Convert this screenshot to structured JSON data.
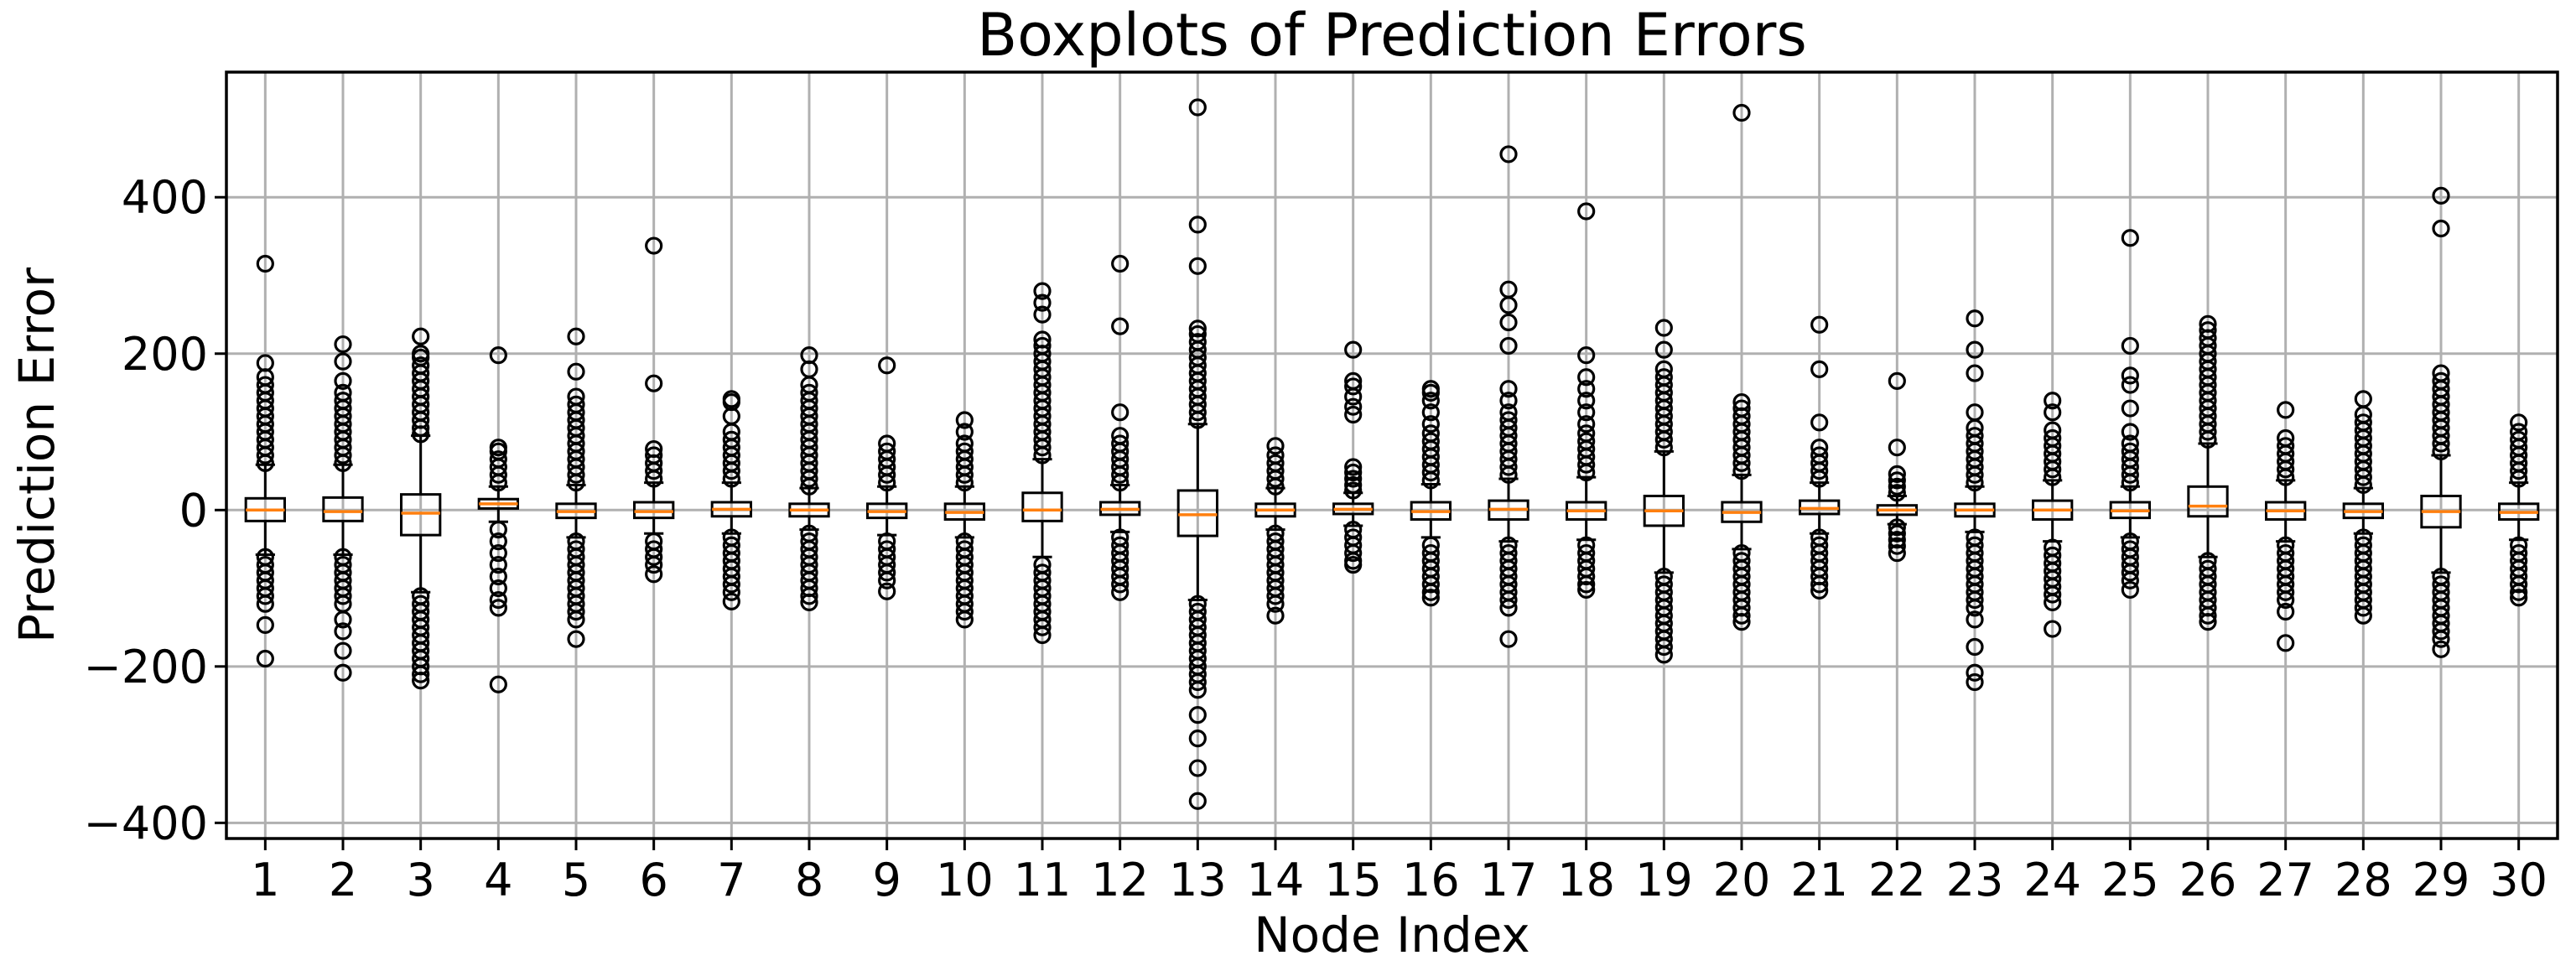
{
  "chart_data": {
    "type": "boxplot",
    "title": "Boxplots of Prediction Errors",
    "xlabel": "Node Index",
    "ylabel": "Prediction Error",
    "ylim": [
      -420,
      560
    ],
    "yticks": [
      -400,
      -200,
      0,
      200,
      400
    ],
    "ytick_labels": [
      "−400",
      "−200",
      "0",
      "200",
      "400"
    ],
    "grid": true,
    "colors": {
      "median": "#ff7f0e",
      "box": "#000000",
      "grid": "#b0b0b0"
    },
    "categories": [
      "1",
      "2",
      "3",
      "4",
      "5",
      "6",
      "7",
      "8",
      "9",
      "10",
      "11",
      "12",
      "13",
      "14",
      "15",
      "16",
      "17",
      "18",
      "19",
      "20",
      "21",
      "22",
      "23",
      "24",
      "25",
      "26",
      "27",
      "28",
      "29",
      "30"
    ],
    "boxes": [
      {
        "q1": -14,
        "median": 0,
        "q3": 15,
        "whisker_low": -57,
        "whisker_high": 58,
        "outliers_high": [
          60,
          70,
          80,
          90,
          100,
          110,
          120,
          130,
          140,
          150,
          160,
          170,
          188,
          315
        ],
        "outliers_low": [
          -60,
          -70,
          -80,
          -90,
          -100,
          -110,
          -120,
          -147,
          -190
        ]
      },
      {
        "q1": -14,
        "median": -2,
        "q3": 16,
        "whisker_low": -57,
        "whisker_high": 58,
        "outliers_high": [
          60,
          70,
          80,
          90,
          100,
          110,
          120,
          130,
          140,
          150,
          165,
          190,
          212
        ],
        "outliers_low": [
          -60,
          -70,
          -80,
          -90,
          -100,
          -110,
          -120,
          -140,
          -155,
          -180,
          -208
        ]
      },
      {
        "q1": -32,
        "median": -4,
        "q3": 20,
        "whisker_low": -105,
        "whisker_high": 95,
        "outliers_high": [
          97,
          105,
          115,
          125,
          135,
          145,
          155,
          165,
          175,
          185,
          195,
          200,
          222
        ],
        "outliers_low": [
          -110,
          -120,
          -130,
          -140,
          -150,
          -160,
          -170,
          -180,
          -190,
          -200,
          -210,
          -218
        ]
      },
      {
        "q1": 2,
        "median": 8,
        "q3": 14,
        "whisker_low": -15,
        "whisker_high": 30,
        "outliers_high": [
          35,
          45,
          55,
          65,
          75,
          80,
          198
        ],
        "outliers_low": [
          -25,
          -40,
          -55,
          -70,
          -85,
          -100,
          -115,
          -125,
          -223
        ]
      },
      {
        "q1": -10,
        "median": -2,
        "q3": 8,
        "whisker_low": -35,
        "whisker_high": 32,
        "outliers_high": [
          35,
          45,
          55,
          65,
          75,
          85,
          95,
          105,
          115,
          125,
          135,
          145,
          177,
          222
        ],
        "outliers_low": [
          -40,
          -50,
          -60,
          -70,
          -80,
          -90,
          -100,
          -110,
          -120,
          -130,
          -140,
          -165
        ]
      },
      {
        "q1": -10,
        "median": -2,
        "q3": 10,
        "whisker_low": -30,
        "whisker_high": 35,
        "outliers_high": [
          40,
          50,
          60,
          70,
          78,
          162,
          338
        ],
        "outliers_low": [
          -40,
          -50,
          -60,
          -70,
          -82
        ]
      },
      {
        "q1": -8,
        "median": 1,
        "q3": 10,
        "whisker_low": -30,
        "whisker_high": 35,
        "outliers_high": [
          40,
          50,
          60,
          70,
          80,
          90,
          100,
          120,
          138,
          142
        ],
        "outliers_low": [
          -35,
          -45,
          -55,
          -65,
          -75,
          -85,
          -95,
          -105,
          -117
        ]
      },
      {
        "q1": -8,
        "median": 0,
        "q3": 8,
        "whisker_low": -25,
        "whisker_high": 28,
        "outliers_high": [
          30,
          40,
          50,
          60,
          70,
          80,
          90,
          100,
          110,
          120,
          130,
          140,
          150,
          160,
          180,
          198
        ],
        "outliers_low": [
          -30,
          -40,
          -50,
          -60,
          -70,
          -80,
          -90,
          -100,
          -110,
          -118
        ]
      },
      {
        "q1": -10,
        "median": -2,
        "q3": 8,
        "whisker_low": -32,
        "whisker_high": 30,
        "outliers_high": [
          35,
          45,
          55,
          65,
          75,
          85,
          185
        ],
        "outliers_low": [
          -40,
          -50,
          -60,
          -70,
          -80,
          -90,
          -104
        ]
      },
      {
        "q1": -12,
        "median": -3,
        "q3": 8,
        "whisker_low": -35,
        "whisker_high": 30,
        "outliers_high": [
          35,
          45,
          55,
          65,
          75,
          85,
          100,
          115
        ],
        "outliers_low": [
          -40,
          -50,
          -60,
          -70,
          -80,
          -90,
          -100,
          -110,
          -120,
          -130,
          -140
        ]
      },
      {
        "q1": -14,
        "median": 0,
        "q3": 22,
        "whisker_low": -60,
        "whisker_high": 65,
        "outliers_high": [
          70,
          80,
          90,
          100,
          110,
          120,
          130,
          140,
          150,
          160,
          170,
          180,
          190,
          200,
          210,
          218,
          250,
          265,
          280
        ],
        "outliers_low": [
          -70,
          -80,
          -90,
          -100,
          -110,
          -120,
          -130,
          -140,
          -150,
          -160
        ]
      },
      {
        "q1": -6,
        "median": 1,
        "q3": 10,
        "whisker_low": -28,
        "whisker_high": 32,
        "outliers_high": [
          35,
          45,
          55,
          65,
          75,
          85,
          95,
          125,
          235,
          315
        ],
        "outliers_low": [
          -35,
          -45,
          -55,
          -65,
          -75,
          -85,
          -95,
          -105
        ]
      },
      {
        "q1": -33,
        "median": -6,
        "q3": 25,
        "whisker_low": -115,
        "whisker_high": 110,
        "outliers_high": [
          115,
          125,
          135,
          145,
          155,
          165,
          175,
          185,
          195,
          205,
          215,
          225,
          232,
          312,
          365,
          515
        ],
        "outliers_low": [
          -120,
          -130,
          -140,
          -150,
          -160,
          -170,
          -180,
          -190,
          -200,
          -210,
          -220,
          -230,
          -262,
          -292,
          -330,
          -372
        ]
      },
      {
        "q1": -8,
        "median": 0,
        "q3": 8,
        "whisker_low": -25,
        "whisker_high": 28,
        "outliers_high": [
          30,
          40,
          50,
          60,
          70,
          82
        ],
        "outliers_low": [
          -30,
          -40,
          -50,
          -60,
          -70,
          -80,
          -90,
          -100,
          -110,
          -120,
          -135
        ]
      },
      {
        "q1": -5,
        "median": 1,
        "q3": 8,
        "whisker_low": -20,
        "whisker_high": 22,
        "outliers_high": [
          25,
          32,
          40,
          48,
          55,
          122,
          132,
          145,
          158,
          165,
          205
        ],
        "outliers_low": [
          -25,
          -35,
          -45,
          -55,
          -65,
          -70
        ]
      },
      {
        "q1": -12,
        "median": -2,
        "q3": 10,
        "whisker_low": -35,
        "whisker_high": 33,
        "outliers_high": [
          38,
          48,
          58,
          68,
          78,
          88,
          98,
          110,
          125,
          140,
          150,
          155
        ],
        "outliers_low": [
          -45,
          -55,
          -65,
          -75,
          -85,
          -95,
          -105,
          -112
        ]
      },
      {
        "q1": -12,
        "median": 1,
        "q3": 12,
        "whisker_low": -40,
        "whisker_high": 40,
        "outliers_high": [
          45,
          55,
          65,
          75,
          85,
          95,
          105,
          115,
          125,
          140,
          155,
          210,
          240,
          262,
          282,
          455
        ],
        "outliers_low": [
          -45,
          -55,
          -65,
          -75,
          -85,
          -95,
          -105,
          -115,
          -125,
          -165
        ]
      },
      {
        "q1": -12,
        "median": -1,
        "q3": 10,
        "whisker_low": -38,
        "whisker_high": 42,
        "outliers_high": [
          48,
          58,
          68,
          78,
          88,
          98,
          110,
          125,
          140,
          155,
          170,
          198,
          382
        ],
        "outliers_low": [
          -45,
          -55,
          -65,
          -75,
          -85,
          -95,
          -102
        ]
      },
      {
        "q1": -20,
        "median": -1,
        "q3": 18,
        "whisker_low": -80,
        "whisker_high": 75,
        "outliers_high": [
          80,
          90,
          100,
          110,
          120,
          130,
          140,
          150,
          160,
          170,
          180,
          205,
          233
        ],
        "outliers_low": [
          -85,
          -95,
          -105,
          -115,
          -125,
          -135,
          -145,
          -155,
          -165,
          -175,
          -185
        ]
      },
      {
        "q1": -15,
        "median": -3,
        "q3": 10,
        "whisker_low": -50,
        "whisker_high": 45,
        "outliers_high": [
          50,
          60,
          70,
          80,
          90,
          100,
          110,
          120,
          130,
          138,
          508
        ],
        "outliers_low": [
          -55,
          -65,
          -75,
          -85,
          -95,
          -105,
          -115,
          -125,
          -135,
          -143
        ]
      },
      {
        "q1": -5,
        "median": 2,
        "q3": 12,
        "whisker_low": -30,
        "whisker_high": 35,
        "outliers_high": [
          40,
          50,
          60,
          70,
          80,
          112,
          180,
          237
        ],
        "outliers_low": [
          -35,
          -45,
          -55,
          -65,
          -75,
          -85,
          -95,
          -103
        ]
      },
      {
        "q1": -6,
        "median": 0,
        "q3": 6,
        "whisker_low": -18,
        "whisker_high": 18,
        "outliers_high": [
          22,
          30,
          38,
          46,
          80,
          165
        ],
        "outliers_low": [
          -22,
          -30,
          -38,
          -46,
          -55
        ]
      },
      {
        "q1": -8,
        "median": 0,
        "q3": 8,
        "whisker_low": -28,
        "whisker_high": 30,
        "outliers_high": [
          35,
          45,
          55,
          65,
          75,
          85,
          95,
          105,
          125,
          175,
          205,
          245
        ],
        "outliers_low": [
          -35,
          -45,
          -55,
          -65,
          -75,
          -85,
          -95,
          -105,
          -115,
          -125,
          -140,
          -175,
          -208,
          -220
        ]
      },
      {
        "q1": -12,
        "median": 0,
        "q3": 12,
        "whisker_low": -40,
        "whisker_high": 38,
        "outliers_high": [
          42,
          52,
          62,
          72,
          82,
          92,
          102,
          125,
          140
        ],
        "outliers_low": [
          -48,
          -58,
          -68,
          -78,
          -88,
          -98,
          -108,
          -118,
          -152
        ]
      },
      {
        "q1": -10,
        "median": -1,
        "q3": 10,
        "whisker_low": -35,
        "whisker_high": 30,
        "outliers_high": [
          35,
          45,
          55,
          65,
          75,
          85,
          100,
          130,
          160,
          172,
          210,
          348
        ],
        "outliers_low": [
          -40,
          -50,
          -60,
          -70,
          -80,
          -90,
          -102
        ]
      },
      {
        "q1": -8,
        "median": 5,
        "q3": 30,
        "whisker_low": -60,
        "whisker_high": 85,
        "outliers_high": [
          90,
          100,
          110,
          120,
          130,
          140,
          150,
          160,
          170,
          180,
          190,
          200,
          210,
          220,
          230,
          238
        ],
        "outliers_low": [
          -65,
          -75,
          -85,
          -95,
          -105,
          -115,
          -125,
          -135,
          -143
        ]
      },
      {
        "q1": -12,
        "median": -1,
        "q3": 10,
        "whisker_low": -40,
        "whisker_high": 38,
        "outliers_high": [
          42,
          52,
          62,
          72,
          82,
          92,
          128
        ],
        "outliers_low": [
          -45,
          -55,
          -65,
          -75,
          -85,
          -95,
          -105,
          -115,
          -130,
          -170
        ]
      },
      {
        "q1": -10,
        "median": -2,
        "q3": 8,
        "whisker_low": -30,
        "whisker_high": 28,
        "outliers_high": [
          32,
          42,
          52,
          62,
          72,
          82,
          92,
          102,
          112,
          122,
          142
        ],
        "outliers_low": [
          -35,
          -45,
          -55,
          -65,
          -75,
          -85,
          -95,
          -105,
          -115,
          -125,
          -135
        ]
      },
      {
        "q1": -22,
        "median": -2,
        "q3": 18,
        "whisker_low": -80,
        "whisker_high": 70,
        "outliers_high": [
          75,
          85,
          95,
          105,
          115,
          125,
          135,
          145,
          155,
          165,
          175,
          360,
          402
        ],
        "outliers_low": [
          -85,
          -95,
          -105,
          -115,
          -125,
          -135,
          -145,
          -155,
          -165,
          -178
        ]
      },
      {
        "q1": -12,
        "median": -3,
        "q3": 8,
        "whisker_low": -38,
        "whisker_high": 35,
        "outliers_high": [
          40,
          50,
          60,
          70,
          80,
          90,
          100,
          112
        ],
        "outliers_low": [
          -45,
          -55,
          -65,
          -75,
          -85,
          -95,
          -105,
          -112
        ]
      }
    ]
  }
}
